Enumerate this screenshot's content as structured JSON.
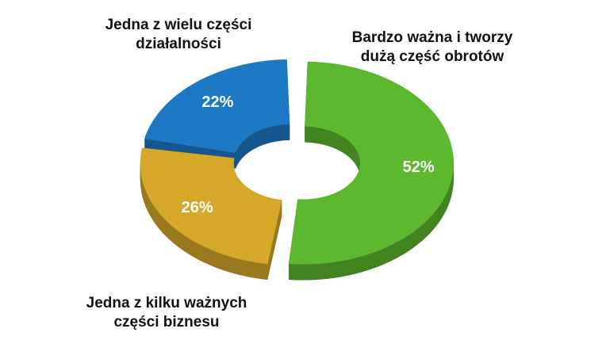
{
  "chart_data": {
    "type": "donut",
    "categories": [
      "Bardzo ważna i tworzy dużą część obrotów",
      "Jedna z kilku ważnych części biznesu",
      "Jedna z wielu części działalności"
    ],
    "values": [
      52,
      26,
      22
    ],
    "value_labels": [
      "52%",
      "26%",
      "22%"
    ],
    "colors": [
      "#5cb82e",
      "#d6a82a",
      "#1d79c4"
    ]
  }
}
